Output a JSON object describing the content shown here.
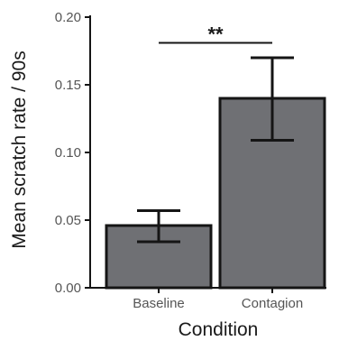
{
  "chart_data": {
    "type": "bar",
    "categories": [
      "Baseline",
      "Contagion"
    ],
    "values": [
      0.046,
      0.14
    ],
    "error_low": [
      0.034,
      0.109
    ],
    "error_high": [
      0.057,
      0.17
    ],
    "xlabel": "Condition",
    "ylabel": "Mean scratch rate / 90s",
    "ylim": [
      0,
      0.2
    ],
    "yticks": [
      "0.00",
      "0.05",
      "0.10",
      "0.15",
      "0.20"
    ],
    "ytick_values": [
      0,
      0.05,
      0.1,
      0.15,
      0.2
    ],
    "grid": false,
    "significance": {
      "label": "**",
      "between": [
        "Baseline",
        "Contagion"
      ],
      "y": 0.181
    },
    "colors": {
      "bar_fill": "#6f7074",
      "bar_stroke": "#151515",
      "error_bar": "#151515",
      "axis": "#151515"
    }
  }
}
